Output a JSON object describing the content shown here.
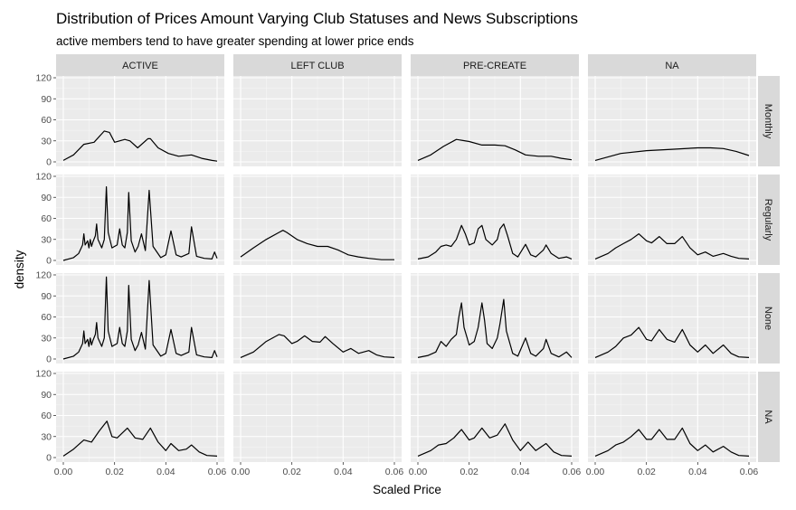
{
  "chart_data": {
    "type": "line",
    "title": "Distribution of Prices Amount Varying Club Statuses and News Subscriptions",
    "subtitle": "active members tend to have greater spending at lower price ends",
    "xlabel": "Scaled Price",
    "ylabel": "density",
    "columns": [
      "ACTIVE",
      "LEFT CLUB",
      "PRE-CREATE",
      "NA"
    ],
    "rows": [
      "Monthly",
      "Regularly",
      "None",
      "NA"
    ],
    "xlim": [
      0,
      0.06
    ],
    "ylim": [
      0,
      120
    ],
    "x_ticks": [
      0,
      0.02,
      0.04,
      0.06
    ],
    "x_tick_labels": [
      "0.00",
      "0.02",
      "0.04",
      "0.06"
    ],
    "y_ticks": [
      0,
      30,
      60,
      90,
      120
    ],
    "y_tick_labels": [
      "0",
      "30",
      "60",
      "90",
      "120"
    ],
    "grid": true,
    "line_color": "#000000",
    "panel_background": "#ebebeb",
    "strip_background": "#d9d9d9",
    "panels": [
      {
        "row": "Monthly",
        "col": "ACTIVE",
        "x": [
          0,
          0.004,
          0.008,
          0.012,
          0.016,
          0.018,
          0.02,
          0.024,
          0.026,
          0.029,
          0.033,
          0.034,
          0.037,
          0.041,
          0.045,
          0.05,
          0.054,
          0.058,
          0.06
        ],
        "y": [
          2,
          10,
          25,
          28,
          44,
          42,
          28,
          32,
          30,
          20,
          33,
          33,
          20,
          12,
          8,
          10,
          5,
          2,
          1
        ]
      },
      {
        "row": "Monthly",
        "col": "LEFT CLUB",
        "x": [],
        "y": []
      },
      {
        "row": "Monthly",
        "col": "PRE-CREATE",
        "x": [
          0,
          0.005,
          0.01,
          0.015,
          0.02,
          0.025,
          0.03,
          0.034,
          0.038,
          0.042,
          0.047,
          0.052,
          0.056,
          0.06
        ],
        "y": [
          2,
          10,
          22,
          32,
          29,
          24,
          24,
          23,
          17,
          10,
          8,
          8,
          5,
          3
        ]
      },
      {
        "row": "Monthly",
        "col": "NA",
        "x": [
          0,
          0.01,
          0.02,
          0.03,
          0.04,
          0.045,
          0.05,
          0.055,
          0.06
        ],
        "y": [
          2,
          12,
          16,
          18,
          20,
          20,
          19,
          15,
          9
        ]
      },
      {
        "row": "Regularly",
        "col": "ACTIVE",
        "x": [
          0,
          0.004,
          0.006,
          0.0075,
          0.008,
          0.0085,
          0.0095,
          0.01,
          0.0105,
          0.011,
          0.0115,
          0.0125,
          0.013,
          0.0135,
          0.015,
          0.016,
          0.0168,
          0.0175,
          0.019,
          0.021,
          0.022,
          0.023,
          0.024,
          0.025,
          0.0255,
          0.0265,
          0.028,
          0.0292,
          0.0305,
          0.032,
          0.0335,
          0.035,
          0.038,
          0.04,
          0.042,
          0.044,
          0.046,
          0.049,
          0.05,
          0.052,
          0.055,
          0.058,
          0.059,
          0.06
        ],
        "y": [
          0,
          4,
          10,
          22,
          38,
          22,
          28,
          18,
          30,
          20,
          26,
          35,
          52,
          30,
          18,
          30,
          105,
          40,
          18,
          22,
          45,
          22,
          18,
          40,
          97,
          28,
          12,
          20,
          38,
          14,
          100,
          20,
          4,
          8,
          42,
          8,
          5,
          10,
          48,
          6,
          3,
          2,
          12,
          3
        ]
      },
      {
        "row": "Regularly",
        "col": "LEFT CLUB",
        "x": [
          0,
          0.005,
          0.01,
          0.015,
          0.0165,
          0.018,
          0.022,
          0.026,
          0.03,
          0.034,
          0.038,
          0.042,
          0.046,
          0.05,
          0.055,
          0.06
        ],
        "y": [
          5,
          18,
          30,
          40,
          43,
          40,
          30,
          24,
          20,
          20,
          15,
          8,
          5,
          3,
          1,
          1
        ]
      },
      {
        "row": "Regularly",
        "col": "PRE-CREATE",
        "x": [
          0,
          0.004,
          0.007,
          0.009,
          0.011,
          0.013,
          0.015,
          0.017,
          0.0185,
          0.02,
          0.022,
          0.0235,
          0.025,
          0.0265,
          0.029,
          0.031,
          0.032,
          0.0335,
          0.035,
          0.037,
          0.039,
          0.042,
          0.044,
          0.046,
          0.049,
          0.05,
          0.052,
          0.055,
          0.058,
          0.06
        ],
        "y": [
          2,
          5,
          12,
          20,
          22,
          20,
          30,
          50,
          38,
          22,
          25,
          45,
          50,
          30,
          22,
          30,
          45,
          52,
          35,
          10,
          5,
          23,
          8,
          5,
          15,
          22,
          10,
          3,
          5,
          2
        ]
      },
      {
        "row": "Regularly",
        "col": "NA",
        "x": [
          0,
          0.005,
          0.008,
          0.011,
          0.014,
          0.017,
          0.02,
          0.022,
          0.025,
          0.028,
          0.031,
          0.034,
          0.037,
          0.04,
          0.043,
          0.046,
          0.05,
          0.053,
          0.056,
          0.06
        ],
        "y": [
          2,
          10,
          18,
          24,
          30,
          38,
          28,
          25,
          34,
          24,
          24,
          34,
          18,
          8,
          12,
          6,
          10,
          6,
          3,
          2
        ]
      },
      {
        "row": "None",
        "col": "ACTIVE",
        "x": [
          0,
          0.004,
          0.006,
          0.0075,
          0.008,
          0.0085,
          0.0095,
          0.01,
          0.0105,
          0.011,
          0.0115,
          0.0125,
          0.013,
          0.0135,
          0.015,
          0.016,
          0.0168,
          0.0175,
          0.019,
          0.021,
          0.022,
          0.023,
          0.024,
          0.025,
          0.0255,
          0.0265,
          0.028,
          0.0292,
          0.0305,
          0.032,
          0.0335,
          0.035,
          0.038,
          0.04,
          0.042,
          0.044,
          0.046,
          0.049,
          0.05,
          0.052,
          0.055,
          0.058,
          0.059,
          0.06
        ],
        "y": [
          0,
          4,
          10,
          22,
          40,
          22,
          28,
          18,
          30,
          20,
          26,
          35,
          52,
          30,
          18,
          30,
          117,
          40,
          18,
          22,
          45,
          22,
          18,
          40,
          105,
          28,
          12,
          20,
          38,
          14,
          112,
          20,
          4,
          8,
          42,
          8,
          5,
          10,
          45,
          6,
          3,
          2,
          12,
          3
        ]
      },
      {
        "row": "None",
        "col": "LEFT CLUB",
        "x": [
          0,
          0.005,
          0.01,
          0.015,
          0.017,
          0.02,
          0.022,
          0.025,
          0.028,
          0.031,
          0.033,
          0.036,
          0.04,
          0.043,
          0.046,
          0.05,
          0.053,
          0.056,
          0.06
        ],
        "y": [
          2,
          10,
          25,
          35,
          33,
          22,
          25,
          33,
          25,
          24,
          32,
          22,
          10,
          15,
          8,
          12,
          6,
          3,
          2
        ]
      },
      {
        "row": "None",
        "col": "PRE-CREATE",
        "x": [
          0,
          0.004,
          0.007,
          0.009,
          0.011,
          0.013,
          0.015,
          0.016,
          0.017,
          0.018,
          0.02,
          0.022,
          0.0235,
          0.025,
          0.026,
          0.027,
          0.029,
          0.031,
          0.032,
          0.0335,
          0.0345,
          0.037,
          0.039,
          0.042,
          0.044,
          0.046,
          0.049,
          0.05,
          0.052,
          0.055,
          0.058,
          0.06
        ],
        "y": [
          2,
          5,
          10,
          25,
          18,
          28,
          35,
          60,
          80,
          45,
          20,
          25,
          45,
          80,
          55,
          22,
          15,
          30,
          50,
          85,
          40,
          8,
          4,
          30,
          8,
          4,
          15,
          28,
          8,
          3,
          10,
          2
        ]
      },
      {
        "row": "None",
        "col": "NA",
        "x": [
          0,
          0.005,
          0.008,
          0.011,
          0.014,
          0.017,
          0.02,
          0.022,
          0.025,
          0.028,
          0.031,
          0.034,
          0.037,
          0.04,
          0.043,
          0.046,
          0.05,
          0.053,
          0.056,
          0.06
        ],
        "y": [
          2,
          10,
          18,
          30,
          34,
          45,
          28,
          26,
          42,
          28,
          24,
          42,
          20,
          10,
          20,
          8,
          20,
          8,
          3,
          2
        ]
      },
      {
        "row": "NA",
        "col": "ACTIVE",
        "x": [
          0,
          0.004,
          0.008,
          0.011,
          0.014,
          0.017,
          0.019,
          0.021,
          0.025,
          0.028,
          0.031,
          0.034,
          0.037,
          0.04,
          0.042,
          0.045,
          0.048,
          0.05,
          0.053,
          0.056,
          0.06
        ],
        "y": [
          2,
          12,
          25,
          22,
          38,
          52,
          30,
          28,
          42,
          28,
          26,
          42,
          22,
          10,
          20,
          10,
          12,
          18,
          8,
          3,
          2
        ]
      },
      {
        "row": "NA",
        "col": "LEFT CLUB",
        "x": [],
        "y": []
      },
      {
        "row": "NA",
        "col": "PRE-CREATE",
        "x": [
          0,
          0.005,
          0.008,
          0.011,
          0.014,
          0.017,
          0.02,
          0.022,
          0.025,
          0.028,
          0.031,
          0.034,
          0.037,
          0.04,
          0.043,
          0.046,
          0.05,
          0.053,
          0.056,
          0.06
        ],
        "y": [
          2,
          10,
          18,
          20,
          28,
          40,
          25,
          28,
          42,
          28,
          32,
          48,
          25,
          10,
          22,
          10,
          20,
          8,
          3,
          2
        ]
      },
      {
        "row": "NA",
        "col": "NA",
        "x": [
          0,
          0.005,
          0.008,
          0.011,
          0.014,
          0.017,
          0.02,
          0.022,
          0.025,
          0.028,
          0.031,
          0.034,
          0.037,
          0.04,
          0.043,
          0.046,
          0.05,
          0.053,
          0.056,
          0.06
        ],
        "y": [
          2,
          10,
          18,
          22,
          30,
          40,
          26,
          26,
          40,
          26,
          26,
          42,
          20,
          10,
          18,
          8,
          16,
          8,
          3,
          2
        ]
      }
    ]
  }
}
